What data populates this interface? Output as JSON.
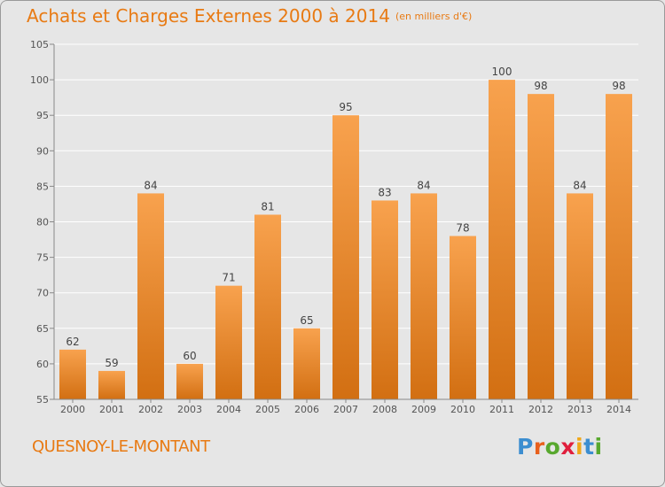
{
  "header": {
    "title": "Achats et Charges Externes 2000 à 2014",
    "unit": "(en milliers d'€)"
  },
  "footer": {
    "commune": "QUESNOY-LE-MONTANT",
    "logo": "Proxiti",
    "logo_colors": [
      "#3c8ed0",
      "#e8601c",
      "#58a82e",
      "#e01f3d",
      "#f0a81a",
      "#3c8ed0",
      "#58a82e"
    ]
  },
  "colors": {
    "title": "#e87a13",
    "bar_top": "#f8a24e",
    "bar_bottom": "#d26f12",
    "grid": "#ffffff",
    "background": "#e6e6e6"
  },
  "chart_data": {
    "type": "bar",
    "categories": [
      "2000",
      "2001",
      "2002",
      "2003",
      "2004",
      "2005",
      "2006",
      "2007",
      "2008",
      "2009",
      "2010",
      "2011",
      "2012",
      "2013",
      "2014"
    ],
    "values": [
      62,
      59,
      84,
      60,
      71,
      81,
      65,
      95,
      83,
      84,
      78,
      100,
      98,
      84,
      98
    ],
    "ylim": [
      55,
      105
    ],
    "yticks": [
      55,
      60,
      65,
      70,
      75,
      80,
      85,
      90,
      95,
      100,
      105
    ],
    "grid": true
  }
}
